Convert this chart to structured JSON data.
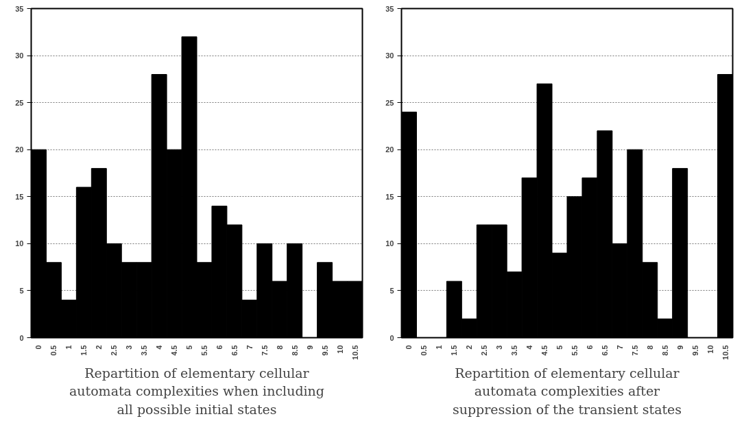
{
  "chart_data": [
    {
      "type": "bar",
      "categories": [
        "0",
        "0.5",
        "1",
        "1.5",
        "2",
        "2.5",
        "3",
        "3.5",
        "4",
        "4.5",
        "5",
        "5.5",
        "6",
        "6.5",
        "7",
        "7.5",
        "8",
        "8.5",
        "9",
        "9.5",
        "10",
        "10.5"
      ],
      "values": [
        20,
        8,
        4,
        16,
        18,
        10,
        8,
        8,
        28,
        20,
        32,
        8,
        14,
        12,
        4,
        10,
        6,
        10,
        0,
        8,
        6,
        6
      ],
      "color": "#000000",
      "ylim": [
        0,
        35
      ],
      "yticks": [
        0,
        5,
        10,
        15,
        20,
        25,
        30,
        35
      ],
      "grid": "y",
      "xlabel": "Repartition of elementary cellular automata complexities when including all possible initial states"
    },
    {
      "type": "bar",
      "categories": [
        "0",
        "0.5",
        "1",
        "1.5",
        "2",
        "2.5",
        "3",
        "3.5",
        "4",
        "4.5",
        "5",
        "5.5",
        "6",
        "6.5",
        "7",
        "7.5",
        "8",
        "8.5",
        "9",
        "9.5",
        "10",
        "10.5"
      ],
      "values": [
        24,
        0,
        0,
        6,
        2,
        12,
        12,
        7,
        17,
        27,
        9,
        15,
        17,
        22,
        10,
        20,
        8,
        2,
        18,
        0,
        0,
        28
      ],
      "color": "#000000",
      "ylim": [
        0,
        35
      ],
      "yticks": [
        0,
        5,
        10,
        15,
        20,
        25,
        30,
        35
      ],
      "grid": "y",
      "xlabel": "Repartition of elementary cellular automata complexities after suppression of the transient states"
    }
  ]
}
